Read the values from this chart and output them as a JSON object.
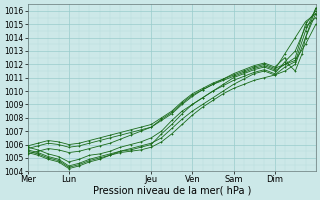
{
  "xlabel": "Pression niveau de la mer( hPa )",
  "bg_color": "#cce8e8",
  "grid_color_major": "#99cccc",
  "grid_color_minor": "#b8dddd",
  "line_color": "#1a6b1a",
  "ylim": [
    1004,
    1016.5
  ],
  "xlim": [
    0,
    168
  ],
  "yticks": [
    1004,
    1005,
    1006,
    1007,
    1008,
    1009,
    1010,
    1011,
    1012,
    1013,
    1014,
    1015,
    1016
  ],
  "xtick_labels": [
    "Mer",
    "Lun",
    "Jeu",
    "Ven",
    "Sam",
    "Dim"
  ],
  "xtick_positions": [
    0,
    24,
    72,
    96,
    120,
    144
  ],
  "xminor_step": 6,
  "lines": [
    {
      "x": [
        0,
        6,
        12,
        18,
        24,
        30,
        36,
        42,
        48,
        54,
        60,
        66,
        72,
        78,
        84,
        90,
        96,
        102,
        108,
        114,
        120,
        126,
        132,
        138,
        144,
        150,
        156,
        162,
        168
      ],
      "y": [
        1005.5,
        1005.3,
        1005.0,
        1004.8,
        1004.3,
        1004.5,
        1004.8,
        1005.0,
        1005.2,
        1005.4,
        1005.5,
        1005.6,
        1005.8,
        1006.2,
        1006.8,
        1007.5,
        1008.2,
        1008.8,
        1009.3,
        1009.8,
        1010.2,
        1010.5,
        1010.8,
        1011.0,
        1011.2,
        1011.5,
        1012.0,
        1014.0,
        1015.8
      ]
    },
    {
      "x": [
        0,
        6,
        12,
        18,
        24,
        30,
        36,
        42,
        48,
        54,
        60,
        66,
        72,
        78,
        84,
        90,
        96,
        102,
        108,
        114,
        120,
        126,
        132,
        138,
        144,
        150,
        156,
        162,
        168
      ],
      "y": [
        1005.6,
        1005.4,
        1005.1,
        1004.9,
        1004.4,
        1004.6,
        1004.9,
        1005.1,
        1005.3,
        1005.5,
        1005.7,
        1005.9,
        1006.1,
        1006.5,
        1007.2,
        1007.9,
        1008.5,
        1009.0,
        1009.5,
        1010.0,
        1010.5,
        1010.9,
        1011.3,
        1011.5,
        1011.2,
        1011.8,
        1012.2,
        1014.5,
        1016.2
      ]
    },
    {
      "x": [
        0,
        6,
        12,
        18,
        24,
        30,
        36,
        42,
        48,
        54,
        60,
        66,
        72,
        78,
        84,
        90,
        96,
        102,
        108,
        114,
        120,
        126,
        132,
        138,
        144,
        150,
        156,
        162,
        168
      ],
      "y": [
        1005.8,
        1005.6,
        1005.3,
        1005.1,
        1004.7,
        1004.9,
        1005.2,
        1005.3,
        1005.5,
        1005.8,
        1006.0,
        1006.2,
        1006.5,
        1007.0,
        1007.8,
        1008.5,
        1009.0,
        1009.5,
        1010.0,
        1010.5,
        1011.0,
        1011.3,
        1011.6,
        1011.8,
        1011.5,
        1012.0,
        1012.5,
        1015.0,
        1016.0
      ]
    },
    {
      "x": [
        0,
        6,
        12,
        18,
        24,
        30,
        36,
        42,
        48,
        54,
        60,
        66,
        72,
        78,
        84,
        90,
        96,
        102,
        108,
        114,
        120,
        126,
        132,
        138,
        144,
        150,
        156,
        162,
        168
      ],
      "y": [
        1005.4,
        1005.2,
        1004.9,
        1004.7,
        1004.2,
        1004.4,
        1004.7,
        1004.9,
        1005.2,
        1005.5,
        1005.6,
        1005.8,
        1006.0,
        1006.8,
        1007.5,
        1008.3,
        1009.0,
        1009.5,
        1010.0,
        1010.4,
        1010.8,
        1011.1,
        1011.4,
        1011.6,
        1011.3,
        1012.2,
        1013.0,
        1014.8,
        1015.5
      ]
    },
    {
      "x": [
        0,
        6,
        12,
        18,
        24,
        30,
        36,
        42,
        48,
        54,
        60,
        66,
        72,
        78,
        84,
        90,
        96,
        102,
        108,
        114,
        120,
        126,
        132,
        138,
        144,
        150,
        152,
        156,
        160,
        162,
        168
      ],
      "y": [
        1005.7,
        1005.9,
        1006.1,
        1006.0,
        1005.8,
        1005.9,
        1006.1,
        1006.3,
        1006.5,
        1006.7,
        1006.9,
        1007.1,
        1007.3,
        1007.8,
        1008.3,
        1009.0,
        1009.6,
        1010.1,
        1010.5,
        1010.9,
        1011.3,
        1011.6,
        1011.9,
        1012.1,
        1011.8,
        1012.5,
        1012.0,
        1011.5,
        1012.8,
        1014.0,
        1016.2
      ]
    },
    {
      "x": [
        0,
        6,
        12,
        18,
        24,
        30,
        36,
        42,
        48,
        54,
        60,
        66,
        72,
        78,
        84,
        90,
        96,
        102,
        108,
        114,
        120,
        126,
        132,
        138,
        144,
        150,
        156,
        162,
        168
      ],
      "y": [
        1005.3,
        1005.5,
        1005.7,
        1005.6,
        1005.4,
        1005.5,
        1005.7,
        1005.9,
        1006.1,
        1006.4,
        1006.7,
        1007.0,
        1007.3,
        1007.9,
        1008.4,
        1009.1,
        1009.7,
        1010.1,
        1010.5,
        1010.8,
        1011.1,
        1011.4,
        1011.7,
        1011.9,
        1011.6,
        1012.8,
        1014.0,
        1015.2,
        1015.8
      ]
    },
    {
      "x": [
        0,
        6,
        12,
        18,
        24,
        30,
        36,
        42,
        48,
        54,
        60,
        66,
        72,
        78,
        84,
        90,
        96,
        102,
        108,
        114,
        120,
        126,
        132,
        138,
        144,
        150,
        156,
        162,
        168
      ],
      "y": [
        1005.9,
        1006.1,
        1006.3,
        1006.2,
        1006.0,
        1006.1,
        1006.3,
        1006.5,
        1006.7,
        1006.9,
        1007.1,
        1007.3,
        1007.5,
        1008.0,
        1008.5,
        1009.2,
        1009.8,
        1010.2,
        1010.6,
        1010.9,
        1011.2,
        1011.5,
        1011.8,
        1012.0,
        1011.7,
        1012.0,
        1012.3,
        1013.5,
        1015.0
      ]
    }
  ]
}
